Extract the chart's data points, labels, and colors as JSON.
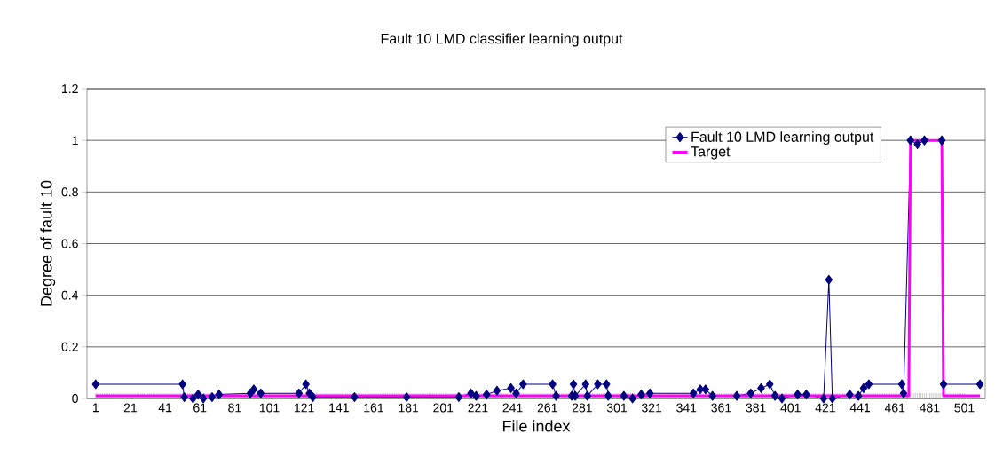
{
  "chart_data": {
    "type": "line",
    "title": "Fault 10 LMD classifier learning output",
    "xlabel": "File index",
    "ylabel": "Degree of fault 10",
    "xlim": [
      -4,
      513
    ],
    "xticks": [
      1,
      21,
      41,
      61,
      81,
      101,
      121,
      141,
      161,
      181,
      201,
      221,
      241,
      261,
      281,
      301,
      321,
      341,
      361,
      381,
      401,
      421,
      441,
      461,
      481,
      501
    ],
    "ylim": [
      0,
      1.2
    ],
    "yticks": [
      0,
      0.2,
      0.4,
      0.6,
      0.8,
      1,
      1.2
    ],
    "grid": "y",
    "legend": "top right",
    "series": [
      {
        "name": "Fault 10 LMD learning output",
        "color": "#000080",
        "marker": "diamond",
        "line_style": "solid",
        "x": [
          1,
          51,
          52,
          57,
          60,
          63,
          68,
          72,
          90,
          92,
          96,
          118,
          122,
          124,
          126,
          150,
          180,
          210,
          217,
          220,
          226,
          232,
          240,
          243,
          247,
          264,
          266,
          275,
          276,
          277,
          283,
          284,
          290,
          295,
          296,
          305,
          310,
          315,
          320,
          345,
          349,
          352,
          356,
          370,
          378,
          384,
          389,
          392,
          396,
          405,
          410,
          420,
          423,
          425,
          435,
          440,
          443,
          446,
          465,
          466,
          470,
          474,
          478,
          488,
          489,
          510
        ],
        "values": [
          0.055,
          0.055,
          0.005,
          0.0,
          0.015,
          0.0,
          0.005,
          0.015,
          0.02,
          0.035,
          0.02,
          0.02,
          0.055,
          0.02,
          0.005,
          0.005,
          0.005,
          0.005,
          0.02,
          0.01,
          0.015,
          0.03,
          0.04,
          0.02,
          0.055,
          0.055,
          0.01,
          0.01,
          0.055,
          0.01,
          0.055,
          0.01,
          0.055,
          0.055,
          0.01,
          0.01,
          0.0,
          0.015,
          0.02,
          0.02,
          0.035,
          0.035,
          0.01,
          0.01,
          0.02,
          0.04,
          0.055,
          0.01,
          0.0,
          0.015,
          0.015,
          0.0,
          0.46,
          0.0,
          0.015,
          0.01,
          0.04,
          0.055,
          0.055,
          0.02,
          1.0,
          0.985,
          1.0,
          1.0,
          0.055,
          0.055
        ]
      },
      {
        "name": "Target",
        "color": "#ff00ff",
        "marker": "none",
        "line_style": "solid",
        "x": [
          1,
          469,
          470,
          488,
          489,
          510
        ],
        "values": [
          0.01,
          0.01,
          1,
          1,
          0.01,
          0.01
        ]
      }
    ]
  }
}
